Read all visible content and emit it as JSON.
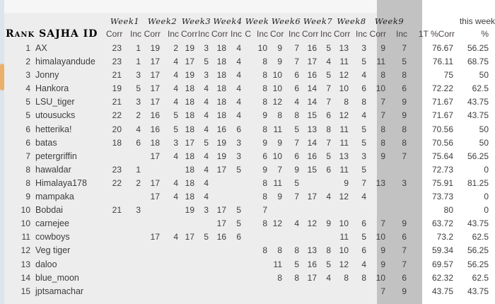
{
  "corner_label": "Rank SAJHA ID",
  "this_week_label": "this week",
  "totals_header": {
    "tt": "1T %Corr",
    "pct": "%"
  },
  "weeks": [
    {
      "label": "Week1",
      "corr": "Corr",
      "inc": "Inc",
      "highlight": false
    },
    {
      "label": "Week2",
      "corr": "Corr",
      "inc": "Inc",
      "highlight": false
    },
    {
      "label": "Week3",
      "corr": "Corr",
      "inc": "Inc",
      "highlight": false
    },
    {
      "label": "Week4",
      "corr": "Corr",
      "inc": "Inc",
      "highlight": false
    },
    {
      "label": "Week",
      "corr": "C",
      "inc": "Inc",
      "highlight": false
    },
    {
      "label": "Week6",
      "corr": "Cor",
      "inc": "Inc",
      "highlight": false
    },
    {
      "label": "Week7",
      "corr": "Corr",
      "inc": "Inc",
      "highlight": false
    },
    {
      "label": "Week8",
      "corr": "Corr",
      "inc": "Inc",
      "highlight": false
    },
    {
      "label": "Week9",
      "corr": "Corr",
      "inc": "Inc",
      "highlight": true
    }
  ],
  "rows": [
    {
      "rank": "1",
      "name": "AX",
      "weeks": [
        [
          "23",
          "1"
        ],
        [
          "19",
          "2"
        ],
        [
          "19",
          "3"
        ],
        [
          "18",
          "4"
        ],
        [
          "",
          "10"
        ],
        [
          "9",
          "7"
        ],
        [
          "16",
          "5"
        ],
        [
          "13",
          "3"
        ],
        [
          "9",
          "7"
        ]
      ],
      "tt": "76.67",
      "pct": "56.25"
    },
    {
      "rank": "2",
      "name": "himalayandude",
      "weeks": [
        [
          "23",
          "1"
        ],
        [
          "17",
          "4"
        ],
        [
          "17",
          "5"
        ],
        [
          "18",
          "4"
        ],
        [
          "",
          "8"
        ],
        [
          "9",
          "7"
        ],
        [
          "17",
          "4"
        ],
        [
          "11",
          "5"
        ],
        [
          "11",
          "5"
        ]
      ],
      "tt": "76.11",
      "pct": "68.75"
    },
    {
      "rank": "3",
      "name": "Jonny",
      "weeks": [
        [
          "21",
          "3"
        ],
        [
          "17",
          "4"
        ],
        [
          "19",
          "3"
        ],
        [
          "18",
          "4"
        ],
        [
          "",
          "8"
        ],
        [
          "10",
          "6"
        ],
        [
          "16",
          "5"
        ],
        [
          "12",
          "4"
        ],
        [
          "8",
          "8"
        ]
      ],
      "tt": "75",
      "pct": "50"
    },
    {
      "rank": "4",
      "name": "Hankora",
      "weeks": [
        [
          "19",
          "5"
        ],
        [
          "17",
          "4"
        ],
        [
          "18",
          "4"
        ],
        [
          "18",
          "4"
        ],
        [
          "",
          "8"
        ],
        [
          "10",
          "6"
        ],
        [
          "14",
          "7"
        ],
        [
          "10",
          "6"
        ],
        [
          "10",
          "6"
        ]
      ],
      "tt": "72.22",
      "pct": "62.5"
    },
    {
      "rank": "5",
      "name": "LSU_tiger",
      "weeks": [
        [
          "21",
          "3"
        ],
        [
          "17",
          "4"
        ],
        [
          "18",
          "4"
        ],
        [
          "18",
          "4"
        ],
        [
          "",
          "8"
        ],
        [
          "12",
          "4"
        ],
        [
          "14",
          "7"
        ],
        [
          "8",
          "8"
        ],
        [
          "7",
          "9"
        ]
      ],
      "tt": "71.67",
      "pct": "43.75"
    },
    {
      "rank": "5",
      "name": "utousucks",
      "weeks": [
        [
          "22",
          "2"
        ],
        [
          "16",
          "5"
        ],
        [
          "18",
          "4"
        ],
        [
          "18",
          "4"
        ],
        [
          "",
          "9"
        ],
        [
          "8",
          "8"
        ],
        [
          "15",
          "6"
        ],
        [
          "12",
          "4"
        ],
        [
          "7",
          "9"
        ]
      ],
      "tt": "71.67",
      "pct": "43.75"
    },
    {
      "rank": "6",
      "name": "hetterika!",
      "weeks": [
        [
          "20",
          "4"
        ],
        [
          "16",
          "5"
        ],
        [
          "18",
          "4"
        ],
        [
          "16",
          "6"
        ],
        [
          "",
          "8"
        ],
        [
          "11",
          "5"
        ],
        [
          "13",
          "8"
        ],
        [
          "11",
          "5"
        ],
        [
          "8",
          "8"
        ]
      ],
      "tt": "70.56",
      "pct": "50"
    },
    {
      "rank": "6",
      "name": "batas",
      "weeks": [
        [
          "18",
          "6"
        ],
        [
          "18",
          "3"
        ],
        [
          "17",
          "5"
        ],
        [
          "19",
          "3"
        ],
        [
          "",
          "9"
        ],
        [
          "9",
          "7"
        ],
        [
          "14",
          "7"
        ],
        [
          "11",
          "5"
        ],
        [
          "8",
          "8"
        ]
      ],
      "tt": "70.56",
      "pct": "50"
    },
    {
      "rank": "7",
      "name": "petergriffin",
      "weeks": [
        [
          "",
          ""
        ],
        [
          "17",
          "4"
        ],
        [
          "18",
          "4"
        ],
        [
          "19",
          "3"
        ],
        [
          "",
          "6"
        ],
        [
          "10",
          "6"
        ],
        [
          "16",
          "5"
        ],
        [
          "13",
          "3"
        ],
        [
          "9",
          "7"
        ]
      ],
      "tt": "75.64",
      "pct": "56.25"
    },
    {
      "rank": "8",
      "name": "hawaldar",
      "weeks": [
        [
          "23",
          "1"
        ],
        [
          "",
          ""
        ],
        [
          "18",
          "4"
        ],
        [
          "17",
          "5"
        ],
        [
          "",
          "9"
        ],
        [
          "7",
          "9"
        ],
        [
          "15",
          "6"
        ],
        [
          "11",
          "5"
        ],
        [
          "",
          ""
        ]
      ],
      "tt": "72.73",
      "pct": "0"
    },
    {
      "rank": "8",
      "name": "Himalaya178",
      "weeks": [
        [
          "22",
          "2"
        ],
        [
          "17",
          "4"
        ],
        [
          "18",
          "4"
        ],
        [
          "",
          ""
        ],
        [
          "",
          "8"
        ],
        [
          "11",
          "5"
        ],
        [
          "",
          ""
        ],
        [
          "9",
          "7"
        ],
        [
          "13",
          "3"
        ]
      ],
      "tt": "75.91",
      "pct": "81.25"
    },
    {
      "rank": "9",
      "name": "mampaka",
      "weeks": [
        [
          "",
          ""
        ],
        [
          "17",
          "4"
        ],
        [
          "18",
          "4"
        ],
        [
          "",
          ""
        ],
        [
          "",
          "8"
        ],
        [
          "9",
          "7"
        ],
        [
          "17",
          "4"
        ],
        [
          "12",
          "4"
        ],
        [
          "",
          ""
        ]
      ],
      "tt": "73.73",
      "pct": "0"
    },
    {
      "rank": "10",
      "name": "Bobdai",
      "weeks": [
        [
          "21",
          "3"
        ],
        [
          "",
          ""
        ],
        [
          "19",
          "3"
        ],
        [
          "17",
          "5"
        ],
        [
          "",
          "7"
        ],
        [
          "",
          ""
        ],
        [
          "",
          ""
        ],
        [
          "",
          ""
        ],
        [
          "",
          ""
        ]
      ],
      "tt": "80",
      "pct": "0"
    },
    {
      "rank": "10",
      "name": "carnejee",
      "weeks": [
        [
          "",
          ""
        ],
        [
          "",
          ""
        ],
        [
          "",
          ""
        ],
        [
          "17",
          "5"
        ],
        [
          "",
          "8"
        ],
        [
          "12",
          "4"
        ],
        [
          "12",
          "9"
        ],
        [
          "10",
          "6"
        ],
        [
          "7",
          "9"
        ]
      ],
      "tt": "63.72",
      "pct": "43.75"
    },
    {
      "rank": "11",
      "name": "cowboys",
      "weeks": [
        [
          "",
          ""
        ],
        [
          "17",
          "4"
        ],
        [
          "17",
          "5"
        ],
        [
          "16",
          "6"
        ],
        [
          "",
          ""
        ],
        [
          "",
          ""
        ],
        [
          "",
          ""
        ],
        [
          "11",
          "5"
        ],
        [
          "10",
          "6"
        ]
      ],
      "tt": "73.2",
      "pct": "62.5"
    },
    {
      "rank": "12",
      "name": "Veg tiger",
      "weeks": [
        [
          "",
          ""
        ],
        [
          "",
          ""
        ],
        [
          "",
          ""
        ],
        [
          "",
          ""
        ],
        [
          "",
          "8"
        ],
        [
          "8",
          "8"
        ],
        [
          "13",
          "8"
        ],
        [
          "10",
          "6"
        ],
        [
          "9",
          "7"
        ]
      ],
      "tt": "59.34",
      "pct": "56.25"
    },
    {
      "rank": "13",
      "name": "daloo",
      "weeks": [
        [
          "",
          ""
        ],
        [
          "",
          ""
        ],
        [
          "",
          ""
        ],
        [
          "",
          ""
        ],
        [
          "",
          ""
        ],
        [
          "11",
          "5"
        ],
        [
          "16",
          "5"
        ],
        [
          "12",
          "4"
        ],
        [
          "9",
          "7"
        ]
      ],
      "tt": "69.57",
      "pct": "56.25"
    },
    {
      "rank": "14",
      "name": "blue_moon",
      "weeks": [
        [
          "",
          ""
        ],
        [
          "",
          ""
        ],
        [
          "",
          ""
        ],
        [
          "",
          ""
        ],
        [
          "",
          ""
        ],
        [
          "8",
          "8"
        ],
        [
          "17",
          "4"
        ],
        [
          "8",
          "8"
        ],
        [
          "10",
          "6"
        ]
      ],
      "tt": "62.32",
      "pct": "62.5"
    },
    {
      "rank": "15",
      "name": "jptsamachar",
      "weeks": [
        [
          "",
          ""
        ],
        [
          "",
          ""
        ],
        [
          "",
          ""
        ],
        [
          "",
          ""
        ],
        [
          "",
          ""
        ],
        [
          "",
          ""
        ],
        [
          "",
          ""
        ],
        [
          "",
          ""
        ],
        [
          "7",
          "9"
        ]
      ],
      "tt": "43.75",
      "pct": "43.75"
    }
  ],
  "colors": {
    "table_bg": "#ededed",
    "top_band": "#f6f6f6",
    "week9_highlight": "#c2c2c2",
    "right_panel": "#ffffff",
    "left_strip": "#dce4ec",
    "orange_marker": "#ecb06a"
  }
}
